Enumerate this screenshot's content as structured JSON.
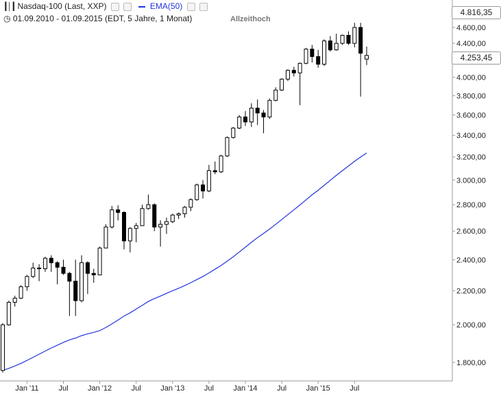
{
  "header": {
    "instrument_label": "Nasdaq-100 (Last, XXP)",
    "indicator_label": "EMA(50)",
    "range_label": "01.09.2010 - 01.09.2015 (EDT, 5 Jahre, 1 Monat)",
    "annotation": "Allzeithoch"
  },
  "price_boxes": {
    "high": "4.816,35",
    "last": "4.253,45"
  },
  "colors": {
    "ema": "#2233dd",
    "candle_up_fill": "#ffffff",
    "candle_down_fill": "#000000",
    "axis_text": "#222222",
    "grid_dots": "#bbbbbb"
  },
  "chart_data": {
    "type": "candlestick",
    "interval": "1 Monat",
    "scale": "log",
    "ylim": [
      1700,
      4900
    ],
    "y_ticks": [
      1800,
      2000,
      2200,
      2400,
      2600,
      2800,
      3000,
      3200,
      3400,
      3600,
      3800,
      4000,
      4200,
      4400,
      4600
    ],
    "y_tick_labels": [
      "1.800,00",
      "2.000,00",
      "2.200,00",
      "2.400,00",
      "2.600,00",
      "2.800,00",
      "3.000,00",
      "3.200,00",
      "3.400,00",
      "3.600,00",
      "3.800,00",
      "4.000,00",
      "4.200,00",
      "4.400,00",
      "4.600,00"
    ],
    "x_tick_labels": [
      "Jan '11",
      "Jul",
      "Jan '12",
      "Jul",
      "Jan '13",
      "Jul",
      "Jan '14",
      "Jul",
      "Jan '15",
      "Jul"
    ],
    "x_tick_months": [
      "2011-01",
      "2011-07",
      "2012-01",
      "2012-07",
      "2013-01",
      "2013-07",
      "2014-01",
      "2014-07",
      "2015-01",
      "2015-07"
    ],
    "candles": [
      {
        "m": "2010-09",
        "o": 1760,
        "h": 2010,
        "l": 1750,
        "c": 2000
      },
      {
        "m": "2010-10",
        "o": 2000,
        "h": 2140,
        "l": 1995,
        "c": 2130
      },
      {
        "m": "2010-11",
        "o": 2130,
        "h": 2170,
        "l": 2105,
        "c": 2155
      },
      {
        "m": "2010-12",
        "o": 2155,
        "h": 2235,
        "l": 2150,
        "c": 2225
      },
      {
        "m": "2011-01",
        "o": 2225,
        "h": 2300,
        "l": 2200,
        "c": 2290
      },
      {
        "m": "2011-02",
        "o": 2290,
        "h": 2380,
        "l": 2280,
        "c": 2345
      },
      {
        "m": "2011-03",
        "o": 2345,
        "h": 2370,
        "l": 2260,
        "c": 2340
      },
      {
        "m": "2011-04",
        "o": 2340,
        "h": 2420,
        "l": 2320,
        "c": 2410
      },
      {
        "m": "2011-05",
        "o": 2410,
        "h": 2430,
        "l": 2320,
        "c": 2380
      },
      {
        "m": "2011-06",
        "o": 2380,
        "h": 2390,
        "l": 2240,
        "c": 2350
      },
      {
        "m": "2011-07",
        "o": 2350,
        "h": 2400,
        "l": 2300,
        "c": 2310
      },
      {
        "m": "2011-08",
        "o": 2310,
        "h": 2320,
        "l": 2050,
        "c": 2260
      },
      {
        "m": "2011-09",
        "o": 2260,
        "h": 2400,
        "l": 2050,
        "c": 2140
      },
      {
        "m": "2011-10",
        "o": 2140,
        "h": 2430,
        "l": 2130,
        "c": 2380
      },
      {
        "m": "2011-11",
        "o": 2380,
        "h": 2390,
        "l": 2180,
        "c": 2310
      },
      {
        "m": "2011-12",
        "o": 2310,
        "h": 2340,
        "l": 2250,
        "c": 2300
      },
      {
        "m": "2012-01",
        "o": 2300,
        "h": 2490,
        "l": 2300,
        "c": 2480
      },
      {
        "m": "2012-02",
        "o": 2480,
        "h": 2650,
        "l": 2480,
        "c": 2630
      },
      {
        "m": "2012-03",
        "o": 2630,
        "h": 2790,
        "l": 2620,
        "c": 2760
      },
      {
        "m": "2012-04",
        "o": 2760,
        "h": 2795,
        "l": 2680,
        "c": 2740
      },
      {
        "m": "2012-05",
        "o": 2740,
        "h": 2750,
        "l": 2470,
        "c": 2530
      },
      {
        "m": "2012-06",
        "o": 2530,
        "h": 2630,
        "l": 2450,
        "c": 2620
      },
      {
        "m": "2012-07",
        "o": 2620,
        "h": 2660,
        "l": 2520,
        "c": 2640
      },
      {
        "m": "2012-08",
        "o": 2640,
        "h": 2800,
        "l": 2640,
        "c": 2770
      },
      {
        "m": "2012-09",
        "o": 2770,
        "h": 2880,
        "l": 2760,
        "c": 2800
      },
      {
        "m": "2012-10",
        "o": 2800,
        "h": 2810,
        "l": 2600,
        "c": 2630
      },
      {
        "m": "2012-11",
        "o": 2630,
        "h": 2680,
        "l": 2490,
        "c": 2650
      },
      {
        "m": "2012-12",
        "o": 2650,
        "h": 2700,
        "l": 2580,
        "c": 2670
      },
      {
        "m": "2013-01",
        "o": 2670,
        "h": 2730,
        "l": 2660,
        "c": 2720
      },
      {
        "m": "2013-02",
        "o": 2720,
        "h": 2740,
        "l": 2690,
        "c": 2730
      },
      {
        "m": "2013-03",
        "o": 2730,
        "h": 2790,
        "l": 2700,
        "c": 2780
      },
      {
        "m": "2013-04",
        "o": 2780,
        "h": 2850,
        "l": 2750,
        "c": 2840
      },
      {
        "m": "2013-05",
        "o": 2840,
        "h": 2970,
        "l": 2830,
        "c": 2960
      },
      {
        "m": "2013-06",
        "o": 2960,
        "h": 3000,
        "l": 2850,
        "c": 2910
      },
      {
        "m": "2013-07",
        "o": 2910,
        "h": 3130,
        "l": 2900,
        "c": 3080
      },
      {
        "m": "2013-08",
        "o": 3080,
        "h": 3160,
        "l": 3050,
        "c": 3070
      },
      {
        "m": "2013-09",
        "o": 3070,
        "h": 3220,
        "l": 3060,
        "c": 3210
      },
      {
        "m": "2013-10",
        "o": 3210,
        "h": 3390,
        "l": 3200,
        "c": 3380
      },
      {
        "m": "2013-11",
        "o": 3380,
        "h": 3480,
        "l": 3370,
        "c": 3470
      },
      {
        "m": "2013-12",
        "o": 3470,
        "h": 3600,
        "l": 3460,
        "c": 3580
      },
      {
        "m": "2014-01",
        "o": 3580,
        "h": 3640,
        "l": 3490,
        "c": 3530
      },
      {
        "m": "2014-02",
        "o": 3530,
        "h": 3720,
        "l": 3480,
        "c": 3670
      },
      {
        "m": "2014-03",
        "o": 3670,
        "h": 3760,
        "l": 3500,
        "c": 3620
      },
      {
        "m": "2014-04",
        "o": 3620,
        "h": 3650,
        "l": 3420,
        "c": 3580
      },
      {
        "m": "2014-05",
        "o": 3580,
        "h": 3770,
        "l": 3560,
        "c": 3750
      },
      {
        "m": "2014-06",
        "o": 3750,
        "h": 3890,
        "l": 3740,
        "c": 3860
      },
      {
        "m": "2014-07",
        "o": 3860,
        "h": 3990,
        "l": 3850,
        "c": 3980
      },
      {
        "m": "2014-08",
        "o": 3980,
        "h": 4090,
        "l": 3960,
        "c": 4080
      },
      {
        "m": "2014-09",
        "o": 4080,
        "h": 4120,
        "l": 4010,
        "c": 4050
      },
      {
        "m": "2014-10",
        "o": 4050,
        "h": 4170,
        "l": 3700,
        "c": 4160
      },
      {
        "m": "2014-11",
        "o": 4160,
        "h": 4340,
        "l": 4150,
        "c": 4330
      },
      {
        "m": "2014-12",
        "o": 4330,
        "h": 4380,
        "l": 4170,
        "c": 4240
      },
      {
        "m": "2015-01",
        "o": 4240,
        "h": 4320,
        "l": 4110,
        "c": 4150
      },
      {
        "m": "2015-02",
        "o": 4150,
        "h": 4450,
        "l": 4130,
        "c": 4430
      },
      {
        "m": "2015-03",
        "o": 4430,
        "h": 4490,
        "l": 4300,
        "c": 4320
      },
      {
        "m": "2015-04",
        "o": 4320,
        "h": 4520,
        "l": 4310,
        "c": 4400
      },
      {
        "m": "2015-05",
        "o": 4400,
        "h": 4510,
        "l": 4380,
        "c": 4500
      },
      {
        "m": "2015-06",
        "o": 4500,
        "h": 4550,
        "l": 4380,
        "c": 4400
      },
      {
        "m": "2015-07",
        "o": 4400,
        "h": 4660,
        "l": 4350,
        "c": 4600
      },
      {
        "m": "2015-08",
        "o": 4600,
        "h": 4660,
        "l": 3790,
        "c": 4280
      },
      {
        "m": "2015-09",
        "o": 4210,
        "h": 4360,
        "l": 4140,
        "c": 4253
      }
    ],
    "ema50": [
      1760,
      1770,
      1782,
      1795,
      1810,
      1826,
      1842,
      1858,
      1874,
      1889,
      1904,
      1917,
      1927,
      1940,
      1950,
      1958,
      1968,
      1985,
      2005,
      2027,
      2050,
      2068,
      2090,
      2112,
      2135,
      2153,
      2168,
      2184,
      2200,
      2216,
      2232,
      2250,
      2270,
      2290,
      2313,
      2337,
      2362,
      2390,
      2420,
      2452,
      2486,
      2520,
      2553,
      2584,
      2616,
      2650,
      2686,
      2723,
      2760,
      2798,
      2838,
      2878,
      2916,
      2956,
      2998,
      3040,
      3080,
      3120,
      3162,
      3200,
      3236
    ]
  }
}
